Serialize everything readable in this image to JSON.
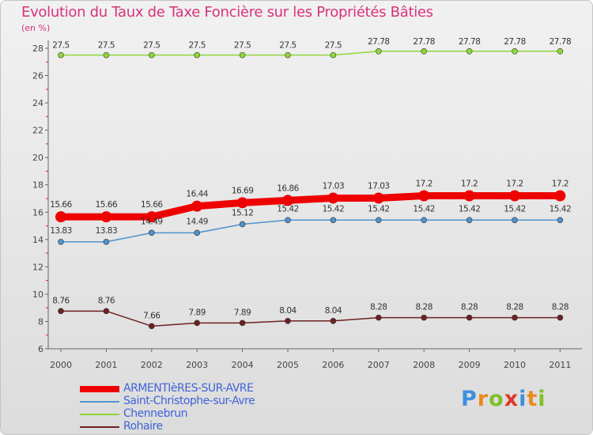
{
  "title": "Evolution du Taux de Taxe Foncière sur les Propriétés Bâties",
  "unit_label": "(en %)",
  "logo_text": "Proxiti",
  "chart_data": {
    "type": "line",
    "title": "Evolution du Taux de Taxe Foncière sur les Propriétés Bâties",
    "ylabel": "(en %)",
    "xlabel": "",
    "ylim": [
      6,
      28
    ],
    "yticks": [
      6,
      8,
      10,
      12,
      14,
      16,
      18,
      20,
      22,
      24,
      26,
      28
    ],
    "grid": false,
    "legend_position": "bottom-left",
    "x": [
      "2000",
      "2001",
      "2002",
      "2003",
      "2004",
      "2005",
      "2006",
      "2007",
      "2008",
      "2009",
      "2010",
      "2011"
    ],
    "series": [
      {
        "name": "ARMENTIèRES-SUR-AVRE",
        "color": "#ee0000",
        "values": [
          15.66,
          15.66,
          15.66,
          16.44,
          16.69,
          16.86,
          17.03,
          17.03,
          17.2,
          17.2,
          17.2,
          17.2
        ],
        "labels": [
          "15.66",
          "15.66",
          "15.66",
          "16.44",
          "16.69",
          "16.86",
          "17.03",
          "17.03",
          "17.2",
          "17.2",
          "17.2",
          "17.2"
        ]
      },
      {
        "name": "Saint-Christophe-sur-Avre",
        "color": "#4f92cf",
        "values": [
          13.83,
          13.83,
          14.49,
          14.49,
          15.12,
          15.42,
          15.42,
          15.42,
          15.42,
          15.42,
          15.42,
          15.42
        ],
        "labels": [
          "13.83",
          "13.83",
          "14.49",
          "14.49",
          "15.12",
          "15.42",
          "15.42",
          "15.42",
          "15.42",
          "15.42",
          "15.42",
          "15.42"
        ]
      },
      {
        "name": "Chennebrun",
        "color": "#8fd63a",
        "values": [
          27.5,
          27.5,
          27.5,
          27.5,
          27.5,
          27.5,
          27.5,
          27.78,
          27.78,
          27.78,
          27.78,
          27.78
        ],
        "labels": [
          "27.5",
          "27.5",
          "27.5",
          "27.5",
          "27.5",
          "27.5",
          "27.5",
          "27.78",
          "27.78",
          "27.78",
          "27.78",
          "27.78"
        ]
      },
      {
        "name": "Rohaire",
        "color": "#6e2121",
        "values": [
          8.76,
          8.76,
          7.66,
          7.89,
          7.89,
          8.04,
          8.04,
          8.28,
          8.28,
          8.28,
          8.28,
          8.28
        ],
        "labels": [
          "8.76",
          "8.76",
          "7.66",
          "7.89",
          "7.89",
          "8.04",
          "8.04",
          "8.28",
          "8.28",
          "8.28",
          "8.28",
          "8.28"
        ]
      }
    ]
  }
}
